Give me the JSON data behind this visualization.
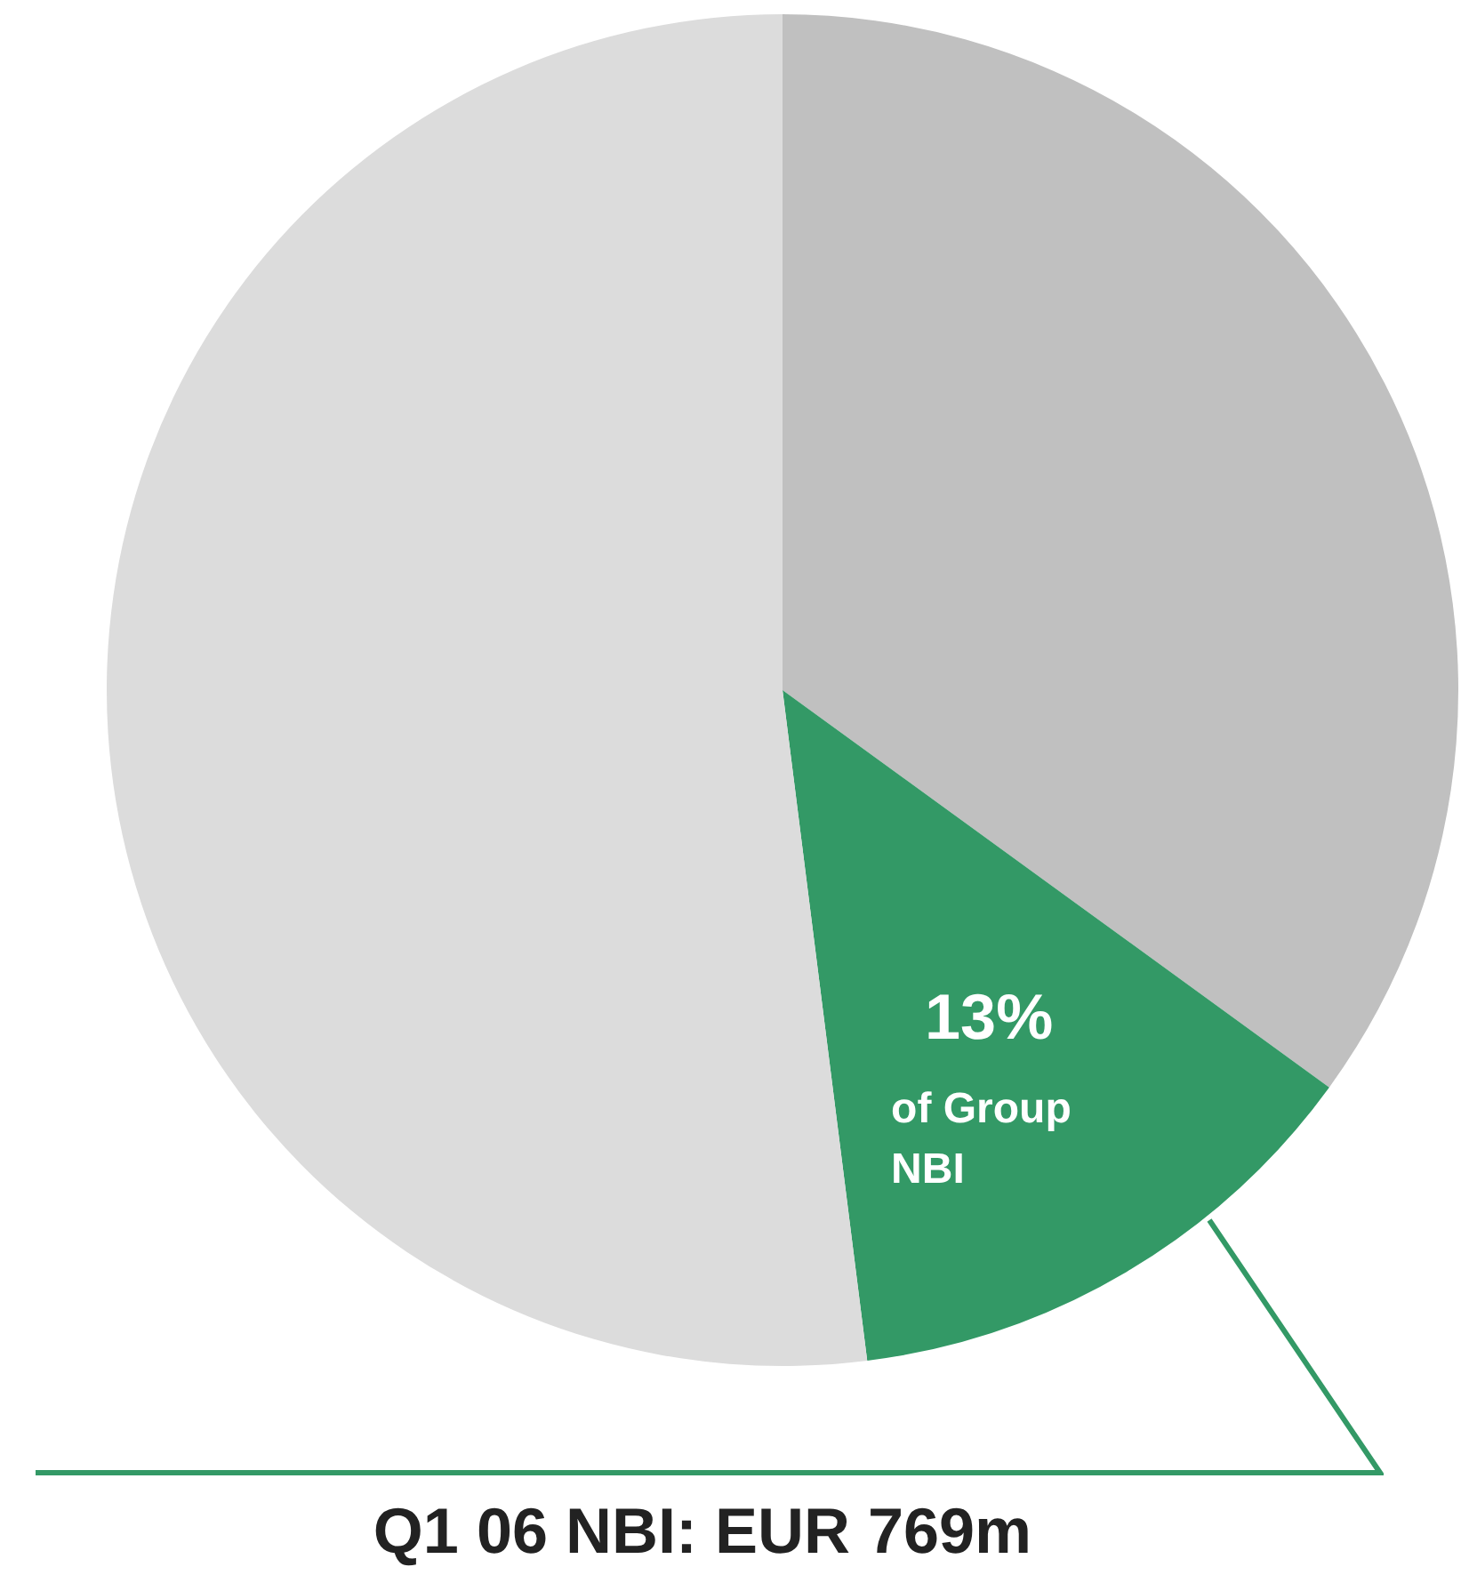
{
  "chart_data": {
    "type": "pie",
    "title": "Q1 06 NBI: EUR 769m",
    "categories": [
      null,
      null,
      null
    ],
    "values": [
      35,
      13,
      52
    ],
    "colors": [
      "#c0c0c0",
      "#339966",
      "#dcdcdc"
    ],
    "value_labels": [
      null,
      "13%",
      null
    ],
    "annotations": [
      "of Group NBI"
    ],
    "legend": false
  }
}
